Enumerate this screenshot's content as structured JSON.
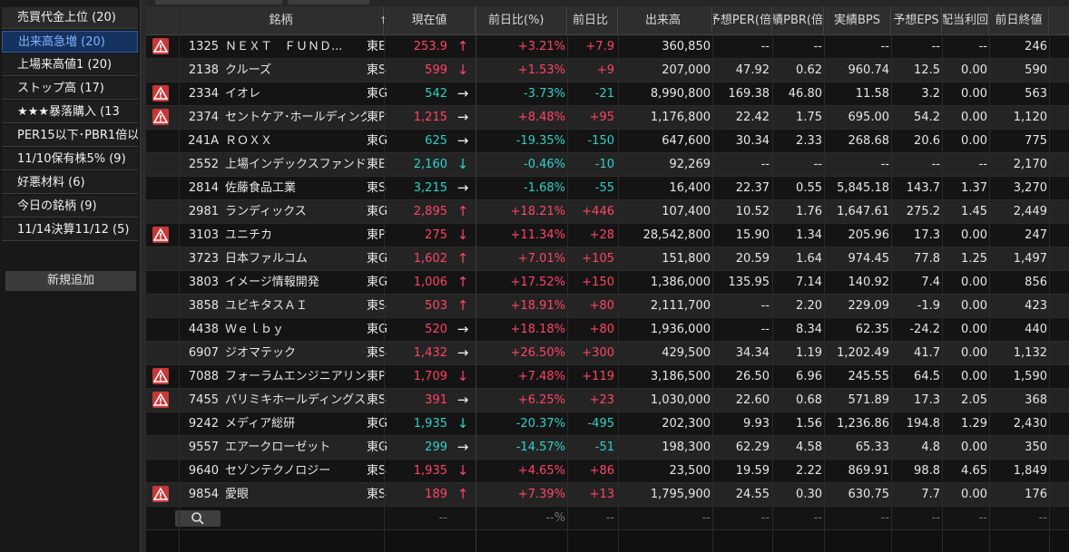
{
  "sidebar": {
    "items": [
      {
        "label": "売買代金上位 (20)",
        "state": "first"
      },
      {
        "label": "出来高急増 (20)",
        "state": "active"
      },
      {
        "label": "上場来高値1 (20)",
        "state": ""
      },
      {
        "label": "ストップ高 (17)",
        "state": ""
      },
      {
        "label": "★★★暴落購入 (13",
        "state": ""
      },
      {
        "label": "PER15以下･PBR1倍以",
        "state": ""
      },
      {
        "label": "11/10保有株5% (9)",
        "state": ""
      },
      {
        "label": "好悪材料 (6)",
        "state": ""
      },
      {
        "label": "今日の銘柄 (9)",
        "state": ""
      },
      {
        "label": "11/14決算11/12 (5)",
        "state": ""
      }
    ],
    "add_button": "新規追加"
  },
  "colors": {
    "up": "#ff4466",
    "down": "#2fd0c8",
    "active_bg": "#16325f",
    "warning": "#c83838"
  },
  "table": {
    "headers": {
      "name": "銘柄",
      "price": "現在値",
      "change_pct": "前日比(%)",
      "change": "前日比",
      "volume": "出来高",
      "per": "予想PER(倍",
      "pbr": "実績PBR(倍",
      "bps": "実績BPS",
      "eps": "予想EPS",
      "yield": "予想配当利回",
      "prev_close": "前日終値"
    },
    "sort_icon": "sort-arrow-up-icon",
    "rows": [
      {
        "warn": true,
        "code": "1325",
        "name": "ＮＥＸＴ　ＦＵＮＤ...",
        "market": "東E",
        "price": "253.9",
        "dir": "up",
        "arrow": "↑",
        "pct": "+3.21%",
        "chg": "+7.9",
        "vol": "360,850",
        "per": "--",
        "pbr": "--",
        "bps": "--",
        "eps": "--",
        "yld": "--",
        "prev": "246"
      },
      {
        "warn": false,
        "code": "2138",
        "name": "クルーズ",
        "market": "東S",
        "price": "599",
        "dir": "up",
        "arrow": "↓",
        "pct": "+1.53%",
        "chg": "+9",
        "vol": "207,000",
        "per": "47.92",
        "pbr": "0.62",
        "bps": "960.74",
        "eps": "12.5",
        "yld": "0.00",
        "prev": "590"
      },
      {
        "warn": true,
        "code": "2334",
        "name": "イオレ",
        "market": "東G",
        "price": "542",
        "dir": "down",
        "arrow": "→",
        "pct": "-3.73%",
        "chg": "-21",
        "vol": "8,990,800",
        "per": "169.38",
        "pbr": "46.80",
        "bps": "11.58",
        "eps": "3.2",
        "yld": "0.00",
        "prev": "563"
      },
      {
        "warn": true,
        "code": "2374",
        "name": "セントケア･ホールディング",
        "market": "東P",
        "price": "1,215",
        "dir": "up",
        "arrow": "→",
        "pct": "+8.48%",
        "chg": "+95",
        "vol": "1,176,800",
        "per": "22.42",
        "pbr": "1.75",
        "bps": "695.00",
        "eps": "54.2",
        "yld": "0.00",
        "prev": "1,120"
      },
      {
        "warn": false,
        "code": "241A",
        "name": "ＲＯＸＸ",
        "market": "東G",
        "price": "625",
        "dir": "down",
        "arrow": "→",
        "pct": "-19.35%",
        "chg": "-150",
        "vol": "647,600",
        "per": "30.34",
        "pbr": "2.33",
        "bps": "268.68",
        "eps": "20.6",
        "yld": "0.00",
        "prev": "775"
      },
      {
        "warn": false,
        "code": "2552",
        "name": "上場インデックスファンド...",
        "market": "東E",
        "price": "2,160",
        "dir": "down",
        "arrow": "↓",
        "pct": "-0.46%",
        "chg": "-10",
        "vol": "92,269",
        "per": "--",
        "pbr": "--",
        "bps": "--",
        "eps": "--",
        "yld": "--",
        "prev": "2,170"
      },
      {
        "warn": false,
        "code": "2814",
        "name": "佐藤食品工業",
        "market": "東S",
        "price": "3,215",
        "dir": "down",
        "arrow": "→",
        "pct": "-1.68%",
        "chg": "-55",
        "vol": "16,400",
        "per": "22.37",
        "pbr": "0.55",
        "bps": "5,845.18",
        "eps": "143.7",
        "yld": "1.37",
        "prev": "3,270"
      },
      {
        "warn": false,
        "code": "2981",
        "name": "ランディックス",
        "market": "東G",
        "price": "2,895",
        "dir": "up",
        "arrow": "↑",
        "pct": "+18.21%",
        "chg": "+446",
        "vol": "107,400",
        "per": "10.52",
        "pbr": "1.76",
        "bps": "1,647.61",
        "eps": "275.2",
        "yld": "1.45",
        "prev": "2,449"
      },
      {
        "warn": true,
        "code": "3103",
        "name": "ユニチカ",
        "market": "東P",
        "price": "275",
        "dir": "up",
        "arrow": "↓",
        "pct": "+11.34%",
        "chg": "+28",
        "vol": "28,542,800",
        "per": "15.90",
        "pbr": "1.34",
        "bps": "205.96",
        "eps": "17.3",
        "yld": "0.00",
        "prev": "247"
      },
      {
        "warn": false,
        "code": "3723",
        "name": "日本ファルコム",
        "market": "東G",
        "price": "1,602",
        "dir": "up",
        "arrow": "↑",
        "pct": "+7.01%",
        "chg": "+105",
        "vol": "151,800",
        "per": "20.59",
        "pbr": "1.64",
        "bps": "974.45",
        "eps": "77.8",
        "yld": "1.25",
        "prev": "1,497"
      },
      {
        "warn": false,
        "code": "3803",
        "name": "イメージ情報開発",
        "market": "東G",
        "price": "1,006",
        "dir": "up",
        "arrow": "↑",
        "pct": "+17.52%",
        "chg": "+150",
        "vol": "1,386,000",
        "per": "135.95",
        "pbr": "7.14",
        "bps": "140.92",
        "eps": "7.4",
        "yld": "0.00",
        "prev": "856"
      },
      {
        "warn": false,
        "code": "3858",
        "name": "ユビキタスＡＩ",
        "market": "東S",
        "price": "503",
        "dir": "up",
        "arrow": "↑",
        "pct": "+18.91%",
        "chg": "+80",
        "vol": "2,111,700",
        "per": "--",
        "pbr": "2.20",
        "bps": "229.09",
        "eps": "-1.9",
        "yld": "0.00",
        "prev": "423"
      },
      {
        "warn": false,
        "code": "4438",
        "name": "Ｗｅｌｂｙ",
        "market": "東G",
        "price": "520",
        "dir": "up",
        "arrow": "→",
        "pct": "+18.18%",
        "chg": "+80",
        "vol": "1,936,000",
        "per": "--",
        "pbr": "8.34",
        "bps": "62.35",
        "eps": "-24.2",
        "yld": "0.00",
        "prev": "440"
      },
      {
        "warn": false,
        "code": "6907",
        "name": "ジオマテック",
        "market": "東S",
        "price": "1,432",
        "dir": "up",
        "arrow": "→",
        "pct": "+26.50%",
        "chg": "+300",
        "vol": "429,500",
        "per": "34.34",
        "pbr": "1.19",
        "bps": "1,202.49",
        "eps": "41.7",
        "yld": "0.00",
        "prev": "1,132"
      },
      {
        "warn": true,
        "code": "7088",
        "name": "フォーラムエンジニアリング",
        "market": "東P",
        "price": "1,709",
        "dir": "up",
        "arrow": "↓",
        "pct": "+7.48%",
        "chg": "+119",
        "vol": "3,186,500",
        "per": "26.50",
        "pbr": "6.96",
        "bps": "245.55",
        "eps": "64.5",
        "yld": "0.00",
        "prev": "1,590"
      },
      {
        "warn": true,
        "code": "7455",
        "name": "パリミキホールディングス",
        "market": "東S",
        "price": "391",
        "dir": "up",
        "arrow": "→",
        "pct": "+6.25%",
        "chg": "+23",
        "vol": "1,030,000",
        "per": "22.60",
        "pbr": "0.68",
        "bps": "571.89",
        "eps": "17.3",
        "yld": "2.05",
        "prev": "368"
      },
      {
        "warn": false,
        "code": "9242",
        "name": "メディア総研",
        "market": "東G",
        "price": "1,935",
        "dir": "down",
        "arrow": "↓",
        "pct": "-20.37%",
        "chg": "-495",
        "vol": "202,300",
        "per": "9.93",
        "pbr": "1.56",
        "bps": "1,236.86",
        "eps": "194.8",
        "yld": "1.29",
        "prev": "2,430"
      },
      {
        "warn": false,
        "code": "9557",
        "name": "エアークローゼット",
        "market": "東G",
        "price": "299",
        "dir": "down",
        "arrow": "→",
        "pct": "-14.57%",
        "chg": "-51",
        "vol": "198,300",
        "per": "62.29",
        "pbr": "4.58",
        "bps": "65.33",
        "eps": "4.8",
        "yld": "0.00",
        "prev": "350"
      },
      {
        "warn": false,
        "code": "9640",
        "name": "セゾンテクノロジー",
        "market": "東S",
        "price": "1,935",
        "dir": "up",
        "arrow": "↓",
        "pct": "+4.65%",
        "chg": "+86",
        "vol": "23,500",
        "per": "19.59",
        "pbr": "2.22",
        "bps": "869.91",
        "eps": "98.8",
        "yld": "4.65",
        "prev": "1,849"
      },
      {
        "warn": true,
        "code": "9854",
        "name": "愛眼",
        "market": "東S",
        "price": "189",
        "dir": "up",
        "arrow": "↑",
        "pct": "+7.39%",
        "chg": "+13",
        "vol": "1,795,900",
        "per": "24.55",
        "pbr": "0.30",
        "bps": "630.75",
        "eps": "7.7",
        "yld": "0.00",
        "prev": "176"
      }
    ],
    "input_row": {
      "search_icon": "search-icon",
      "price": "--",
      "pct": "--%",
      "chg": "--",
      "vol": "--",
      "per": "--",
      "pbr": "--",
      "bps": "--",
      "eps": "--",
      "yld": "--",
      "prev": "--"
    }
  }
}
